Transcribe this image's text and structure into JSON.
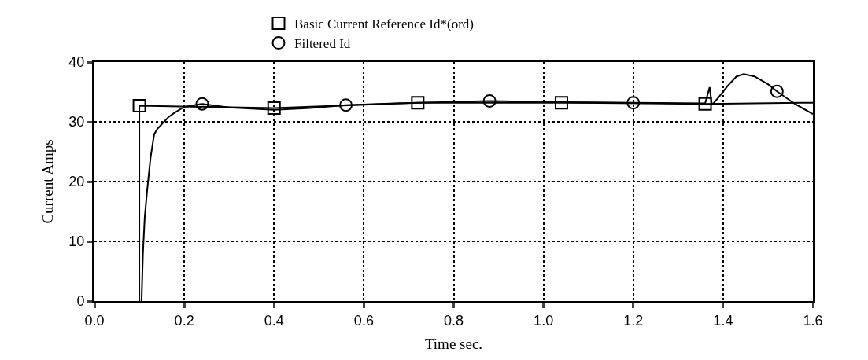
{
  "chart_data": {
    "type": "line",
    "xlabel": "Time sec.",
    "ylabel": "Current Amps",
    "xlim": [
      0,
      1.6
    ],
    "ylim": [
      0,
      40
    ],
    "xticks": [
      {
        "value": 0,
        "label": "0.0"
      },
      {
        "value": 0.2,
        "label": "0.2"
      },
      {
        "value": 0.4,
        "label": "0.4"
      },
      {
        "value": 0.6,
        "label": "0.6"
      },
      {
        "value": 0.8,
        "label": "0.8"
      },
      {
        "value": 1,
        "label": "1.0"
      },
      {
        "value": 1.2,
        "label": "1.2"
      },
      {
        "value": 1.4,
        "label": "1.4"
      },
      {
        "value": 1.6,
        "label": "1.6"
      }
    ],
    "yticks": [
      0,
      10,
      20,
      30,
      40
    ],
    "grid": true,
    "legend": "top",
    "line_style": "solid",
    "series": [
      {
        "color": "#000000",
        "x": [
          0.1,
          0.1,
          0.4,
          0.72,
          1.04,
          1.36,
          1.6
        ],
        "values": [
          0,
          32.7,
          32.3,
          33.2,
          33.2,
          33.0,
          33.2
        ]
      },
      {
        "type": "scatter",
        "marker": "square",
        "name": "Basic Current Reference Id*(ord)",
        "color": "#000000",
        "x": [
          0.1,
          0.4,
          0.72,
          1.04,
          1.36
        ],
        "values": [
          32.7,
          32.3,
          33.2,
          33.2,
          33.0
        ]
      },
      {
        "color": "#000000",
        "x": [
          0.105,
          0.108,
          0.112,
          0.117,
          0.125,
          0.133,
          0.14,
          0.15,
          0.165,
          0.178,
          0.2,
          0.24,
          0.3,
          0.4,
          0.48,
          0.56,
          0.72,
          0.88,
          1.04,
          1.2,
          1.36,
          1.37,
          1.375,
          1.39,
          1.41,
          1.43,
          1.446,
          1.47,
          1.5,
          1.52,
          1.56,
          1.6
        ],
        "values": [
          0,
          8,
          14,
          18.2,
          24,
          27.9,
          28.8,
          29.6,
          30.8,
          31.5,
          32.5,
          33.0,
          32.4,
          32.0,
          32.3,
          32.8,
          33.2,
          33.5,
          33.3,
          33.2,
          33.1,
          35.8,
          32.8,
          34.1,
          36.0,
          37.6,
          38.0,
          37.6,
          36.3,
          35.1,
          33.0,
          31.3
        ]
      },
      {
        "type": "scatter",
        "marker": "circle",
        "name": "Filtered Id",
        "color": "#000000",
        "x": [
          0.24,
          0.56,
          0.88,
          1.2,
          1.52
        ],
        "values": [
          33.0,
          32.8,
          33.5,
          33.2,
          35.1
        ]
      }
    ]
  }
}
